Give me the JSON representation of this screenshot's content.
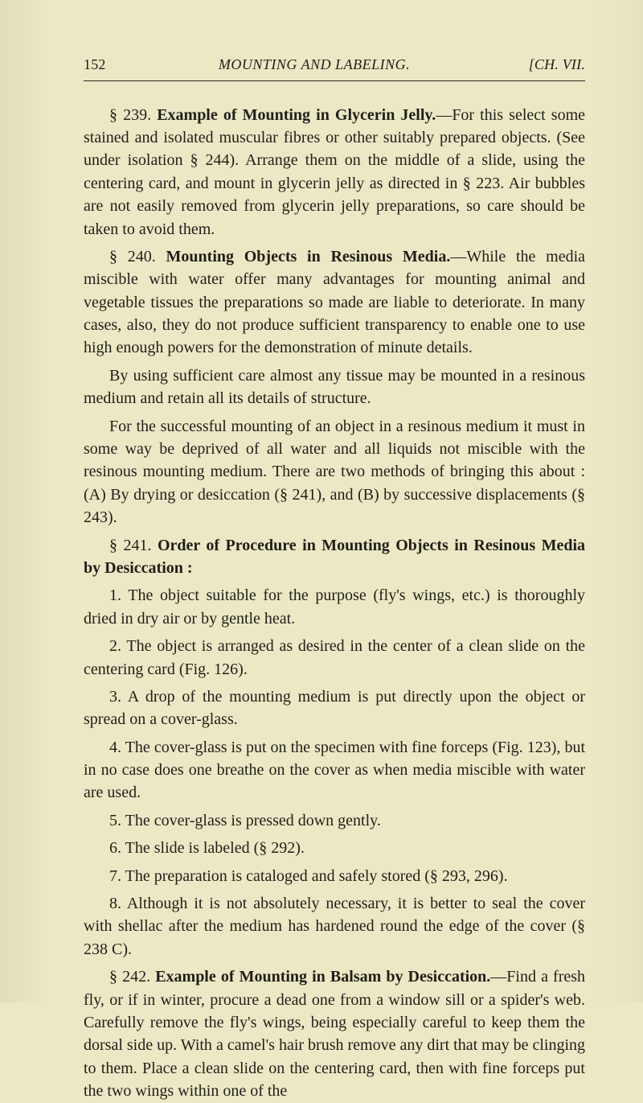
{
  "header": {
    "pageNumber": "152",
    "title": "MOUNTING AND LABELING.",
    "chapter": "[CH. VII."
  },
  "p1": {
    "sec": "§ 239.",
    "title": "Example of Mounting in Glycerin Jelly.",
    "rest": "—For this select some stained and isolated muscular fibres or other suitably prepared objects. (See under isolation § 244). Arrange them on the middle of a slide, using the centering card, and mount in glycerin jelly as directed in § 223. Air bubbles are not easily removed from glycerin jelly preparations, so care should be taken to avoid them."
  },
  "p2": {
    "sec": "§ 240.",
    "title": "Mounting Objects in Resinous Media.",
    "rest": "—While the media miscible with water offer many advantages for mounting animal and vegetable tissues the preparations so made are liable to deteriorate. In many cases, also, they do not produce sufficient transparency to enable one to use high enough powers for the demonstration of minute details."
  },
  "p3": "By using sufficient care almost any tissue may be mounted in a resinous medium and retain all its details of structure.",
  "p4": "For the successful mounting of an object in a resinous medium it must in some way be deprived of all water and all liquids not miscible with the resinous mounting medium. There are two methods of bringing this about : (A) By drying or desiccation (§ 241), and (B) by successive displacements (§ 243).",
  "p5": {
    "sec": "§ 241.",
    "title": "Order of Procedure in Mounting Objects in Resinous Media by Desiccation :"
  },
  "items": {
    "i1": "1. The object suitable for the purpose (fly's wings, etc.) is thoroughly dried in dry air or by gentle heat.",
    "i2": "2. The object is arranged as desired in the center of a clean slide on the centering card (Fig. 126).",
    "i3": "3. A drop of the mounting medium is put directly upon the object or spread on a cover-glass.",
    "i4": "4. The cover-glass is put on the specimen with fine forceps (Fig. 123), but in no case does one breathe on the cover as when media miscible with water are used.",
    "i5": "5. The cover-glass is pressed down gently.",
    "i6": "6. The slide is labeled (§ 292).",
    "i7": "7. The preparation is cataloged and safely stored (§ 293, 296).",
    "i8": "8. Although it is not absolutely necessary, it is better to seal the cover with shellac after the medium has hardened round the edge of the cover (§ 238 C)."
  },
  "p6": {
    "sec": "§ 242.",
    "title": "Example of Mounting in Balsam by Desiccation.",
    "rest": "—Find a fresh fly, or if in winter, procure a dead one from a window sill or a spider's web. Carefully remove the fly's wings, being especially careful to keep them the dorsal side up. With a camel's hair brush remove any dirt that may be clinging to them. Place a clean slide on the centering card, then with fine forceps put the two wings within one of the"
  }
}
